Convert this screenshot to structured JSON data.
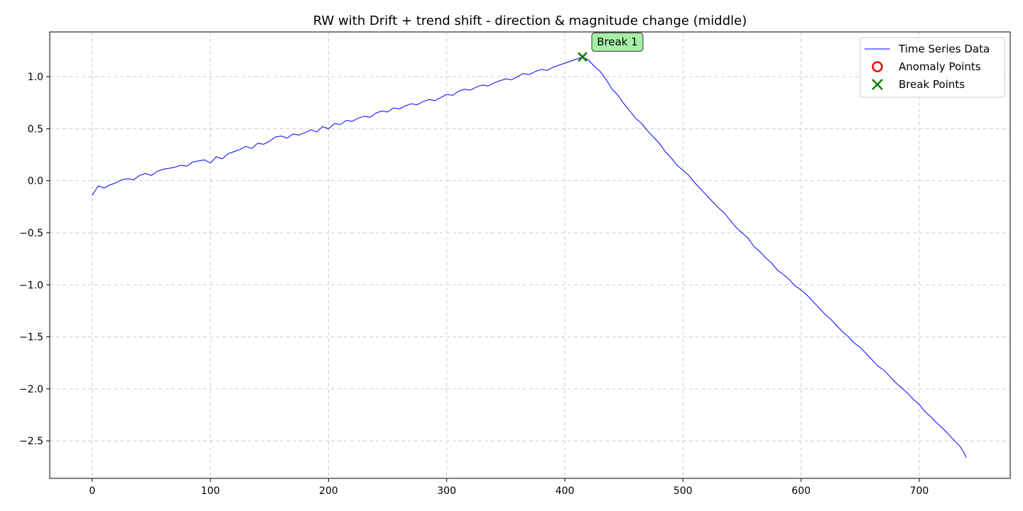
{
  "chart_data": {
    "type": "line",
    "title": "RW with Drift + trend shift - direction & magnitude change (middle)",
    "xlabel": "",
    "ylabel": "",
    "xlim": [
      -36,
      777
    ],
    "ylim": [
      -2.86,
      1.43
    ],
    "x_ticks": [
      0,
      100,
      200,
      300,
      400,
      500,
      600,
      700
    ],
    "x_tick_labels": [
      "0",
      "100",
      "200",
      "300",
      "400",
      "500",
      "600",
      "700"
    ],
    "y_ticks": [
      1.0,
      0.5,
      0.0,
      -0.5,
      -1.0,
      -1.5,
      -2.0,
      -2.5
    ],
    "y_tick_labels": [
      "1.0",
      "0.5",
      "0.0",
      "−0.5",
      "−1.0",
      "−1.5",
      "−2.0",
      "−2.5"
    ],
    "grid": true,
    "legend_position": "top-right",
    "series": [
      {
        "name": "Time Series Data",
        "color": "#0000ff",
        "x": [
          0,
          5,
          10,
          15,
          20,
          25,
          30,
          35,
          40,
          45,
          50,
          55,
          60,
          65,
          70,
          75,
          80,
          85,
          90,
          95,
          100,
          105,
          110,
          115,
          120,
          125,
          130,
          135,
          140,
          145,
          150,
          155,
          160,
          165,
          170,
          175,
          180,
          185,
          190,
          195,
          200,
          205,
          210,
          215,
          220,
          225,
          230,
          235,
          240,
          245,
          250,
          255,
          260,
          265,
          270,
          275,
          280,
          285,
          290,
          295,
          300,
          305,
          310,
          315,
          320,
          325,
          330,
          335,
          340,
          345,
          350,
          355,
          360,
          365,
          370,
          375,
          380,
          385,
          390,
          395,
          400,
          405,
          410,
          415,
          420,
          425,
          430,
          435,
          440,
          445,
          450,
          455,
          460,
          465,
          470,
          475,
          480,
          485,
          490,
          495,
          500,
          505,
          510,
          515,
          520,
          525,
          530,
          535,
          540,
          545,
          550,
          555,
          560,
          565,
          570,
          575,
          580,
          585,
          590,
          595,
          600,
          605,
          610,
          615,
          620,
          625,
          630,
          635,
          640,
          645,
          650,
          655,
          660,
          665,
          670,
          675,
          680,
          685,
          690,
          695,
          700,
          705,
          710,
          715,
          720,
          725,
          730,
          735,
          740
        ],
        "y": [
          -0.14,
          -0.05,
          -0.07,
          -0.04,
          -0.02,
          0.01,
          0.02,
          0.01,
          0.05,
          0.07,
          0.05,
          0.09,
          0.11,
          0.12,
          0.13,
          0.15,
          0.14,
          0.18,
          0.19,
          0.2,
          0.17,
          0.23,
          0.21,
          0.26,
          0.28,
          0.3,
          0.33,
          0.31,
          0.36,
          0.35,
          0.38,
          0.42,
          0.43,
          0.41,
          0.45,
          0.44,
          0.46,
          0.49,
          0.47,
          0.52,
          0.5,
          0.55,
          0.54,
          0.58,
          0.57,
          0.6,
          0.62,
          0.61,
          0.65,
          0.67,
          0.66,
          0.7,
          0.69,
          0.72,
          0.74,
          0.73,
          0.76,
          0.78,
          0.77,
          0.8,
          0.83,
          0.82,
          0.86,
          0.88,
          0.87,
          0.9,
          0.92,
          0.91,
          0.94,
          0.96,
          0.98,
          0.97,
          1.0,
          1.03,
          1.02,
          1.05,
          1.07,
          1.06,
          1.09,
          1.11,
          1.13,
          1.15,
          1.17,
          1.19,
          1.16,
          1.1,
          1.05,
          0.97,
          0.88,
          0.82,
          0.74,
          0.67,
          0.6,
          0.55,
          0.48,
          0.42,
          0.36,
          0.28,
          0.22,
          0.15,
          0.1,
          0.05,
          -0.02,
          -0.08,
          -0.14,
          -0.2,
          -0.26,
          -0.31,
          -0.38,
          -0.45,
          -0.5,
          -0.55,
          -0.63,
          -0.68,
          -0.74,
          -0.79,
          -0.86,
          -0.9,
          -0.95,
          -1.01,
          -1.05,
          -1.1,
          -1.16,
          -1.22,
          -1.28,
          -1.33,
          -1.39,
          -1.45,
          -1.5,
          -1.56,
          -1.6,
          -1.66,
          -1.72,
          -1.78,
          -1.82,
          -1.88,
          -1.94,
          -1.99,
          -2.04,
          -2.1,
          -2.15,
          -2.22,
          -2.27,
          -2.33,
          -2.38,
          -2.44,
          -2.5,
          -2.56,
          -2.66
        ]
      }
    ],
    "anomaly_points": [],
    "break_points": [
      {
        "x": 415,
        "y": 1.19,
        "label": "Break 1",
        "color": "#008000"
      }
    ],
    "legend": [
      {
        "label": "Time Series Data",
        "kind": "line",
        "color": "#0000ff"
      },
      {
        "label": "Anomaly Points",
        "kind": "circle",
        "color": "#ff0000"
      },
      {
        "label": "Break Points",
        "kind": "cross",
        "color": "#008000"
      }
    ]
  }
}
